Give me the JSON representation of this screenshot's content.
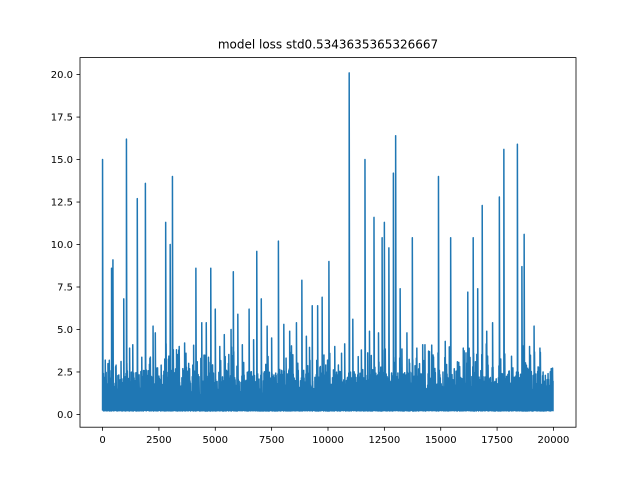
{
  "chart_data": {
    "type": "line",
    "title": "model loss std0.5343635365326667",
    "xlabel": "",
    "ylabel": "",
    "xlim": [
      -1000,
      21000
    ],
    "ylim": [
      -0.75,
      21.0
    ],
    "xticks": [
      0,
      2500,
      5000,
      7500,
      10000,
      12500,
      15000,
      17500,
      20000
    ],
    "xtick_labels": [
      "0",
      "2500",
      "5000",
      "7500",
      "10000",
      "12500",
      "15000",
      "17500",
      "20000"
    ],
    "yticks": [
      0.0,
      2.5,
      5.0,
      7.5,
      10.0,
      12.5,
      15.0,
      17.5,
      20.0
    ],
    "ytick_labels": [
      "0.0",
      "2.5",
      "5.0",
      "7.5",
      "10.0",
      "12.5",
      "15.0",
      "17.5",
      "20.0"
    ],
    "grid": false,
    "series": [
      {
        "color": "#1f77b4",
        "n_points": 20000,
        "baseline": 0.3,
        "peaks": [
          [
            0,
            15.0
          ],
          [
            120,
            2.2
          ],
          [
            250,
            1.8
          ],
          [
            400,
            8.6
          ],
          [
            460,
            9.1
          ],
          [
            600,
            2.9
          ],
          [
            800,
            1.4
          ],
          [
            950,
            6.8
          ],
          [
            1070,
            16.2
          ],
          [
            1200,
            3.9
          ],
          [
            1350,
            4.1
          ],
          [
            1550,
            12.7
          ],
          [
            1750,
            2.9
          ],
          [
            1900,
            13.6
          ],
          [
            2100,
            3.3
          ],
          [
            2250,
            5.2
          ],
          [
            2350,
            4.8
          ],
          [
            2600,
            2.9
          ],
          [
            2800,
            11.3
          ],
          [
            3000,
            10.0
          ],
          [
            3100,
            14.0
          ],
          [
            3400,
            4.0
          ],
          [
            3700,
            3.6
          ],
          [
            4000,
            2.9
          ],
          [
            4150,
            8.6
          ],
          [
            4400,
            5.4
          ],
          [
            4600,
            5.4
          ],
          [
            4800,
            8.6
          ],
          [
            5000,
            6.2
          ],
          [
            5200,
            4.0
          ],
          [
            5400,
            4.7
          ],
          [
            5700,
            5.0
          ],
          [
            5800,
            8.4
          ],
          [
            6000,
            5.9
          ],
          [
            6200,
            4.1
          ],
          [
            6500,
            6.2
          ],
          [
            6700,
            4.4
          ],
          [
            6850,
            9.6
          ],
          [
            7050,
            6.8
          ],
          [
            7300,
            5.2
          ],
          [
            7500,
            4.5
          ],
          [
            7800,
            10.2
          ],
          [
            8050,
            5.3
          ],
          [
            8300,
            4.9
          ],
          [
            8600,
            5.4
          ],
          [
            8850,
            7.9
          ],
          [
            9050,
            4.6
          ],
          [
            9300,
            6.4
          ],
          [
            9550,
            6.4
          ],
          [
            9750,
            6.9
          ],
          [
            10050,
            9.0
          ],
          [
            10300,
            4.0
          ],
          [
            10600,
            3.6
          ],
          [
            10950,
            20.1
          ],
          [
            11100,
            5.6
          ],
          [
            11350,
            3.4
          ],
          [
            11650,
            15.0
          ],
          [
            11850,
            4.9
          ],
          [
            12050,
            11.6
          ],
          [
            12250,
            4.8
          ],
          [
            12400,
            10.4
          ],
          [
            12500,
            11.3
          ],
          [
            12700,
            9.8
          ],
          [
            12900,
            14.2
          ],
          [
            13000,
            16.4
          ],
          [
            13200,
            7.4
          ],
          [
            13500,
            4.8
          ],
          [
            13750,
            10.4
          ],
          [
            13950,
            3.9
          ],
          [
            14200,
            4.1
          ],
          [
            14500,
            3.7
          ],
          [
            14900,
            14.0
          ],
          [
            15200,
            4.3
          ],
          [
            15450,
            10.4
          ],
          [
            15750,
            3.1
          ],
          [
            16000,
            3.9
          ],
          [
            16200,
            7.2
          ],
          [
            16450,
            10.4
          ],
          [
            16650,
            7.4
          ],
          [
            16850,
            12.3
          ],
          [
            17050,
            4.9
          ],
          [
            17300,
            5.4
          ],
          [
            17600,
            12.8
          ],
          [
            17800,
            15.6
          ],
          [
            18150,
            3.3
          ],
          [
            18400,
            15.9
          ],
          [
            18600,
            8.7
          ],
          [
            18700,
            10.6
          ],
          [
            18950,
            4.0
          ],
          [
            19150,
            5.2
          ],
          [
            19400,
            3.9
          ],
          [
            19650,
            2.3
          ],
          [
            19900,
            2.7
          ]
        ]
      }
    ]
  }
}
